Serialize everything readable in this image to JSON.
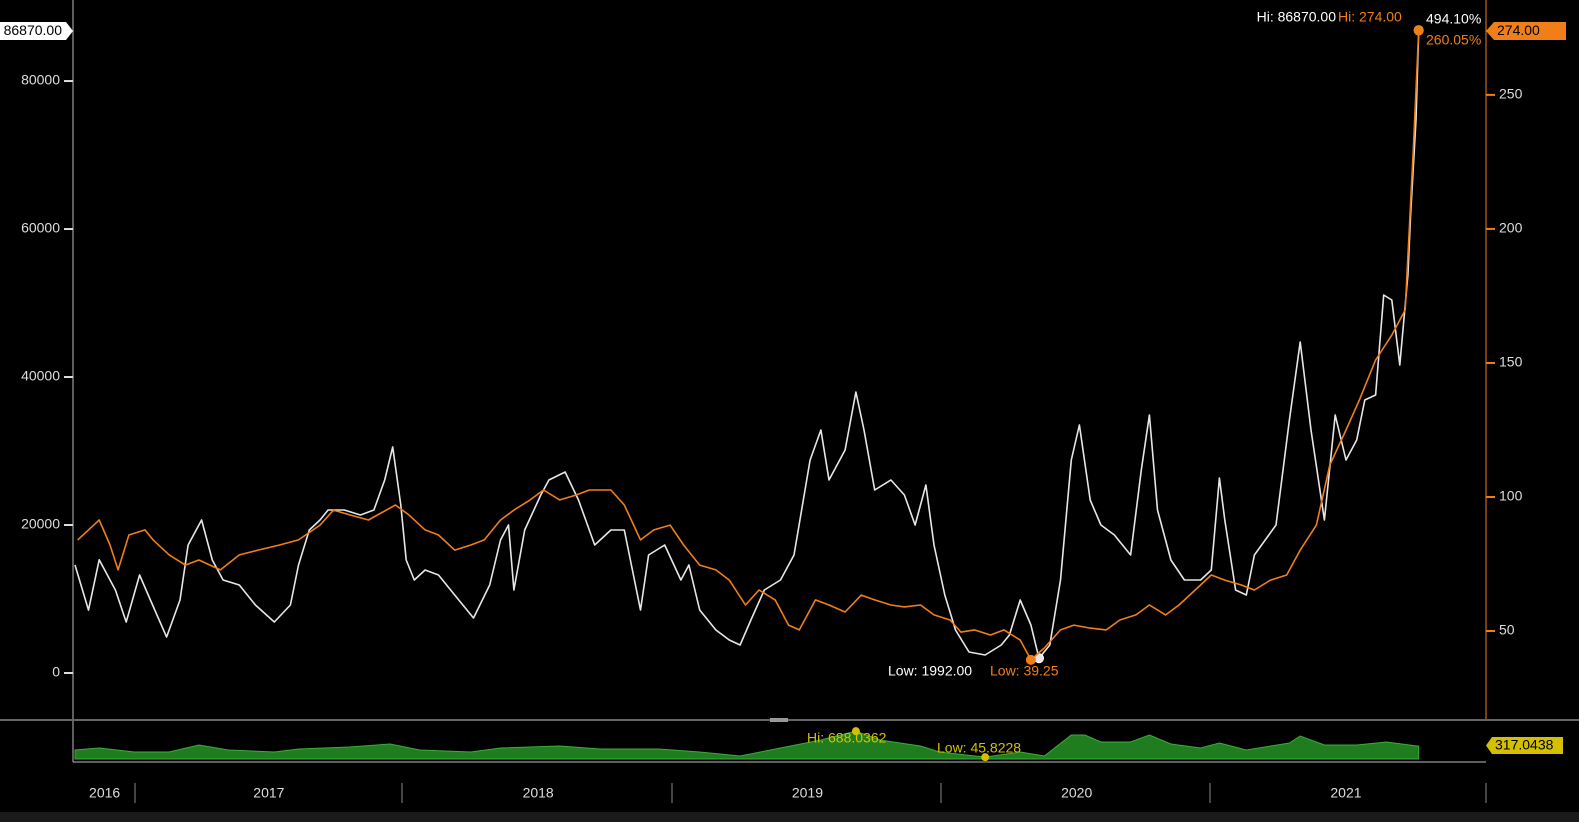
{
  "chart_data": [
    {
      "type": "line",
      "xlim": [
        2016.78,
        2022.02
      ],
      "ylim": [
        -6350,
        90950
      ],
      "yticks": [
        0,
        20000,
        40000,
        60000,
        80000
      ],
      "y2lim": [
        16.8,
        285.4
      ],
      "y2ticks": [
        50,
        100,
        150,
        200,
        250
      ],
      "series": [
        {
          "name": "White",
          "color": "#e6e6e6",
          "x": [
            2016.78,
            2016.83,
            2016.87,
            2016.93,
            2016.97,
            2017.02,
            2017.06,
            2017.12,
            2017.17,
            2017.2,
            2017.25,
            2017.29,
            2017.33,
            2017.39,
            2017.45,
            2017.52,
            2017.58,
            2017.61,
            2017.65,
            2017.69,
            2017.72,
            2017.78,
            2017.84,
            2017.89,
            2017.93,
            2017.96,
            2017.99,
            2018.01,
            2018.04,
            2018.08,
            2018.13,
            2018.19,
            2018.26,
            2018.32,
            2018.36,
            2018.39,
            2018.41,
            2018.45,
            2018.51,
            2018.54,
            2018.6,
            2018.65,
            2018.71,
            2018.77,
            2018.82,
            2018.88,
            2018.91,
            2018.97,
            2019.03,
            2019.06,
            2019.1,
            2019.16,
            2019.21,
            2019.25,
            2019.29,
            2019.34,
            2019.4,
            2019.45,
            2019.51,
            2019.55,
            2019.58,
            2019.64,
            2019.68,
            2019.71,
            2019.75,
            2019.81,
            2019.86,
            2019.9,
            2019.94,
            2019.97,
            2020.01,
            2020.05,
            2020.1,
            2020.16,
            2020.22,
            2020.25,
            2020.29,
            2020.33,
            2020.36,
            2020.4,
            2020.44,
            2020.48,
            2020.51,
            2020.55,
            2020.59,
            2020.64,
            2020.7,
            2020.74,
            2020.77,
            2020.8,
            2020.85,
            2020.9,
            2020.96,
            2021.0,
            2021.03,
            2021.05,
            2021.09,
            2021.13,
            2021.16,
            2021.2,
            2021.24,
            2021.29,
            2021.33,
            2021.37,
            2021.42,
            2021.46,
            2021.5,
            2021.54,
            2021.57,
            2021.61,
            2021.64,
            2021.67,
            2021.7,
            2021.73,
            2021.74,
            2021.76,
            2021.77
          ],
          "values": [
            14600,
            8500,
            15300,
            11220,
            6890,
            13240,
            9870,
            4870,
            9870,
            17300,
            20680,
            15270,
            12570,
            11890,
            9190,
            6890,
            9190,
            14600,
            19320,
            20680,
            22030,
            22030,
            21350,
            22030,
            26080,
            30540,
            22700,
            15270,
            12570,
            13920,
            13240,
            10540,
            7430,
            11890,
            17970,
            20000,
            11220,
            19320,
            24050,
            26080,
            27160,
            23380,
            17300,
            19320,
            19320,
            8510,
            15950,
            17300,
            12570,
            14600,
            8510,
            5810,
            4460,
            3780,
            7160,
            11220,
            12570,
            15950,
            28780,
            32840,
            26080,
            30140,
            37970,
            32840,
            24730,
            26080,
            24050,
            20000,
            25410,
            17300,
            10540,
            5810,
            2840,
            2430,
            3780,
            5140,
            9870,
            6490,
            1992,
            3780,
            12570,
            28780,
            33510,
            23380,
            20000,
            18650,
            15950,
            27430,
            34870,
            22030,
            15270,
            12570,
            12570,
            13920,
            26350,
            20680,
            11220,
            10540,
            15950,
            17970,
            20000,
            34190,
            44730,
            32840,
            20680,
            34870,
            28780,
            31490,
            36890,
            37570,
            51080,
            50410,
            41620,
            53780,
            61890,
            74730,
            86870
          ]
        },
        {
          "name": "Orange",
          "color": "#f07f1a",
          "axis": "y2",
          "x": [
            2016.79,
            2016.83,
            2016.87,
            2016.91,
            2016.94,
            2016.98,
            2017.04,
            2017.07,
            2017.13,
            2017.19,
            2017.24,
            2017.32,
            2017.39,
            2017.46,
            2017.54,
            2017.61,
            2017.69,
            2017.74,
            2017.8,
            2017.87,
            2017.97,
            2018.02,
            2018.08,
            2018.13,
            2018.19,
            2018.25,
            2018.3,
            2018.36,
            2018.41,
            2018.47,
            2018.52,
            2018.58,
            2018.64,
            2018.69,
            2018.77,
            2018.82,
            2018.88,
            2018.93,
            2018.99,
            2019.04,
            2019.1,
            2019.16,
            2019.21,
            2019.27,
            2019.32,
            2019.38,
            2019.43,
            2019.47,
            2019.53,
            2019.58,
            2019.64,
            2019.7,
            2019.75,
            2019.81,
            2019.86,
            2019.92,
            2019.97,
            2020.03,
            2020.07,
            2020.12,
            2020.18,
            2020.23,
            2020.29,
            2020.33,
            2020.38,
            2020.44,
            2020.49,
            2020.55,
            2020.61,
            2020.66,
            2020.72,
            2020.77,
            2020.83,
            2020.88,
            2020.94,
            2021.0,
            2021.05,
            2021.11,
            2021.16,
            2021.22,
            2021.28,
            2021.33,
            2021.39,
            2021.44,
            2021.5,
            2021.55,
            2021.61,
            2021.67,
            2021.72,
            2021.75,
            2021.77
          ],
          "values": [
            84,
            87.7,
            91.4,
            82.1,
            72.8,
            85.8,
            87.7,
            84,
            78.4,
            74.6,
            76.5,
            72.8,
            78.4,
            80.2,
            82.1,
            84,
            89.5,
            95.1,
            93.3,
            91.4,
            97,
            93.3,
            87.7,
            85.8,
            80.2,
            82.1,
            84,
            91.4,
            95.1,
            98.9,
            102.6,
            98.9,
            100.7,
            102.6,
            102.6,
            97,
            84,
            87.7,
            89.5,
            82.1,
            74.6,
            72.8,
            69,
            59.7,
            65.3,
            61.6,
            52.2,
            50.4,
            61.6,
            59.7,
            57.1,
            63.4,
            61.6,
            59.7,
            59,
            59.7,
            56,
            54.1,
            49.6,
            50.4,
            48.5,
            50.4,
            46.6,
            39.25,
            43.7,
            50.4,
            52.2,
            51.1,
            50.4,
            54.1,
            56,
            59.7,
            56,
            59.7,
            65.3,
            70.9,
            69,
            67.2,
            65.3,
            69,
            70.9,
            80.2,
            89.5,
            111.9,
            125,
            136.2,
            151.1,
            160.4,
            169.8,
            229.5,
            274
          ]
        }
      ],
      "annotations": [
        "86870.00",
        "Hi: 86870.00",
        "Hi: 274.00",
        "494.10%",
        "260.05%",
        "274.00",
        "Low: 1992.00",
        "Low: 39.25"
      ]
    },
    {
      "type": "area",
      "xlim": [
        2016.78,
        2022.02
      ],
      "ylim": [
        0,
        914
      ],
      "xticks": [
        {
          "value": 2016.89,
          "label": "2016"
        },
        {
          "value": 2017.5,
          "label": "2017"
        },
        {
          "value": 2018.5,
          "label": "2018"
        },
        {
          "value": 2019.5,
          "label": "2019"
        },
        {
          "value": 2020.5,
          "label": "2020"
        },
        {
          "value": 2021.5,
          "label": "2021"
        }
      ],
      "series": [
        {
          "name": "Green",
          "color": "#1f7d1f",
          "x": [
            2016.78,
            2016.87,
            2017.0,
            2017.13,
            2017.24,
            2017.35,
            2017.52,
            2017.61,
            2017.8,
            2017.95,
            2018.06,
            2018.25,
            2018.36,
            2018.58,
            2018.73,
            2018.95,
            2019.1,
            2019.25,
            2019.4,
            2019.55,
            2019.68,
            2019.77,
            2019.92,
            2019.99,
            2020.16,
            2020.29,
            2020.38,
            2020.48,
            2020.53,
            2020.59,
            2020.7,
            2020.77,
            2020.85,
            2020.96,
            2021.03,
            2021.13,
            2021.29,
            2021.33,
            2021.42,
            2021.54,
            2021.65,
            2021.77
          ],
          "values": [
            222,
            272,
            173,
            173,
            346,
            222,
            173,
            247,
            296,
            371,
            222,
            173,
            272,
            321,
            247,
            247,
            173,
            74,
            272,
            469,
            688.0362,
            469,
            321,
            173,
            45.8228,
            173,
            74,
            593,
            593,
            420,
            420,
            593,
            371,
            272,
            395,
            222,
            395,
            568,
            346,
            346,
            420,
            317.0438
          ]
        }
      ],
      "annotations": [
        "Hi: 688.0362",
        "Low: 45.8228",
        "317.0438"
      ]
    }
  ]
}
